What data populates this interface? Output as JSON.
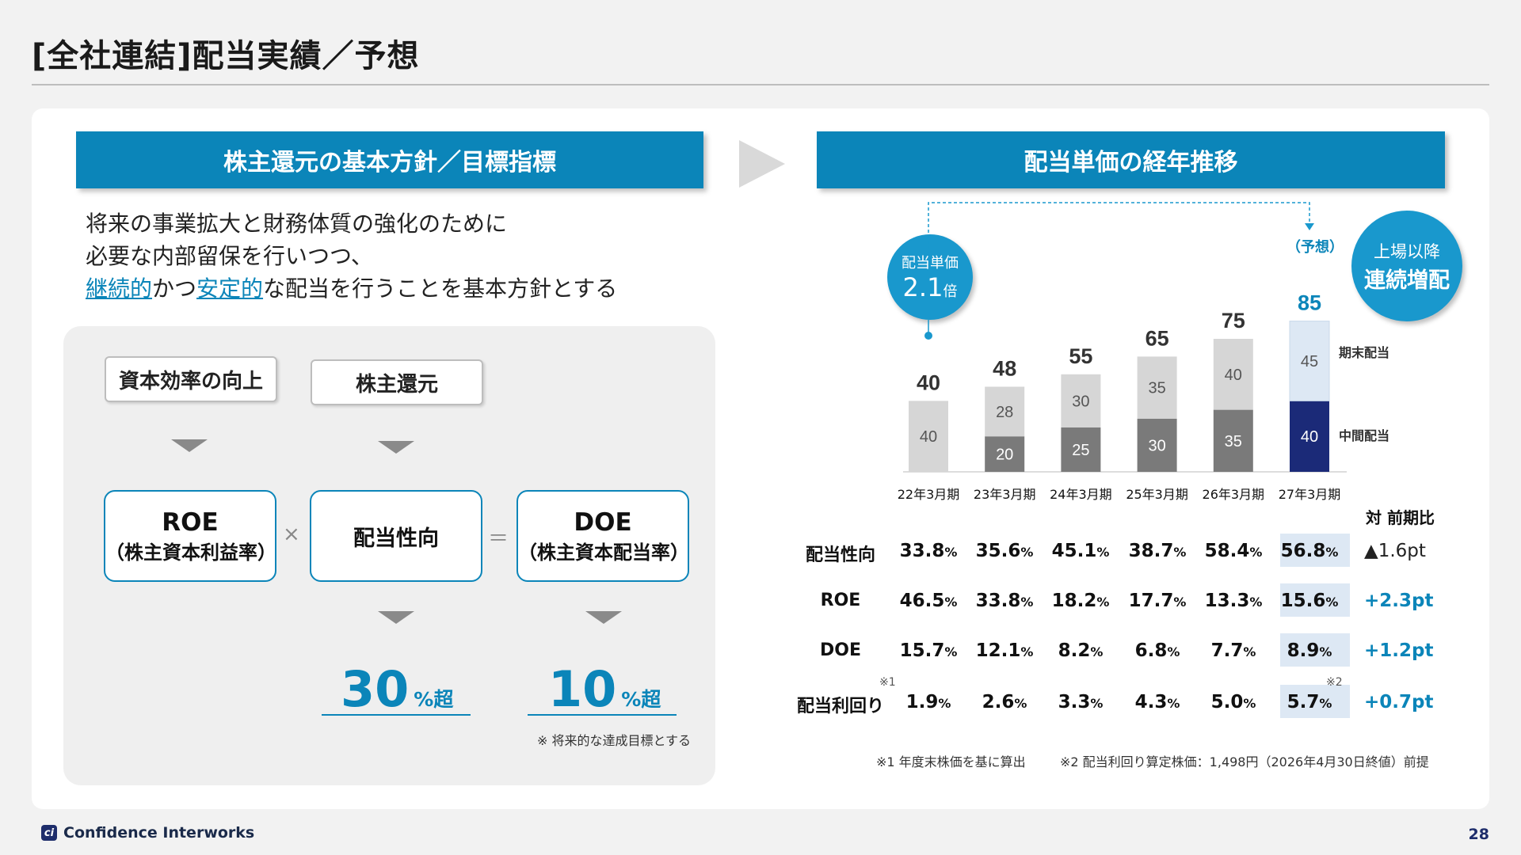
{
  "page": {
    "title": "[全社連結]配当実績／予想",
    "page_number": "28",
    "company": "Confidence Interworks"
  },
  "left": {
    "banner": "株主還元の基本方針／目標指標",
    "policy_line1": "将来の事業拡大と財務体質の強化のために",
    "policy_line2": "必要な内部留保を行いつつ、",
    "policy_hl1": "継続的",
    "policy_mid1": "かつ",
    "policy_hl2": "安定的",
    "policy_tail": "な配当を行うことを基本方針とする",
    "box_capital": "資本効率の向上",
    "box_shareholder": "株主還元",
    "roe_main": "ROE",
    "roe_sub": "（株主資本利益率）",
    "payout_main": "配当性向",
    "doe_main": "DOE",
    "doe_sub": "（株主資本配当率）",
    "op_times": "×",
    "op_equals": "＝",
    "target_payout": "30",
    "target_doe": "10",
    "target_suffix": "%超",
    "target_note": "※ 将来的な達成目標とする"
  },
  "right": {
    "banner": "配当単価の経年推移",
    "circle_left_label": "配当単価",
    "circle_left_value": "2.1",
    "circle_left_unit": "倍",
    "circle_right_line1": "上場以降",
    "circle_right_line2": "連続増配",
    "forecast_label": "（予想）",
    "legend_final": "期末配当",
    "legend_interim": "中間配当",
    "yoy_header": "対 前期比",
    "footnote1": "※1 年度末株価を基に算出",
    "footnote2": "※2 配当利回り算定株価：1,498円（2026年4月30日終値）前提",
    "mark1": "※1",
    "mark2": "※2"
  },
  "chart_data": {
    "type": "bar",
    "stacked": true,
    "categories": [
      "22年3月期",
      "23年3月期",
      "24年3月期",
      "25年3月期",
      "26年3月期",
      "27年3月期"
    ],
    "totals": [
      40,
      48,
      55,
      65,
      75,
      85
    ],
    "series": [
      {
        "name": "中間配当",
        "values": [
          null,
          20,
          25,
          30,
          35,
          40
        ],
        "color": "#7a7a7a",
        "forecast_color": "#1b2a78"
      },
      {
        "name": "期末配当",
        "values": [
          40,
          28,
          30,
          35,
          40,
          45
        ],
        "color": "#d6d6d6",
        "forecast_color": "#dde8f4"
      }
    ],
    "forecast_index": 5,
    "ylim": [
      0,
      95
    ]
  },
  "table": {
    "rows": [
      {
        "label": "配当性向",
        "values": [
          "33.8",
          "35.6",
          "45.1",
          "38.7",
          "58.4",
          "56.8"
        ],
        "unit": "%",
        "delta": "▲1.6pt",
        "delta_color": "#222222"
      },
      {
        "label": "ROE",
        "values": [
          "46.5",
          "33.8",
          "18.2",
          "17.7",
          "13.3",
          "15.6"
        ],
        "unit": "%",
        "delta": "+2.3pt",
        "delta_color": "#0b85b9"
      },
      {
        "label": "DOE",
        "values": [
          "15.7",
          "12.1",
          "8.2",
          "6.8",
          "7.7",
          "8.9"
        ],
        "unit": "%",
        "delta": "+1.2pt",
        "delta_color": "#0b85b9"
      },
      {
        "label": "配当利回り",
        "values": [
          "1.9",
          "2.6",
          "3.3",
          "4.3",
          "5.0",
          "5.7"
        ],
        "unit": "%",
        "delta": "+0.7pt",
        "delta_color": "#0b85b9"
      }
    ]
  }
}
